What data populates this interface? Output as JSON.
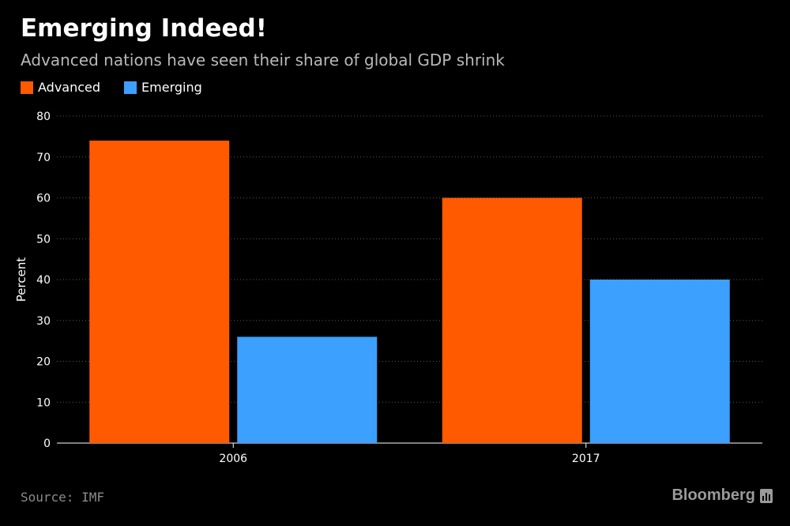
{
  "header": {
    "title": "Emerging Indeed!",
    "subtitle": "Advanced nations have seen their share of global GDP shrink"
  },
  "footer": {
    "source": "Source: IMF",
    "brand": "Bloomberg"
  },
  "colors": {
    "advanced": "#ff5a00",
    "emerging": "#3ba0ff",
    "background": "#000000",
    "grid": "#5a5a5a"
  },
  "chart_data": {
    "type": "bar",
    "categories": [
      "2006",
      "2017"
    ],
    "series": [
      {
        "name": "Advanced",
        "values": [
          74,
          60
        ]
      },
      {
        "name": "Emerging",
        "values": [
          26,
          40
        ]
      }
    ],
    "ylabel": "Percent",
    "xlabel": "",
    "ylim": [
      0,
      80
    ],
    "yticks": [
      0,
      10,
      20,
      30,
      40,
      50,
      60,
      70,
      80
    ],
    "grid": true,
    "legend": "top-left"
  }
}
